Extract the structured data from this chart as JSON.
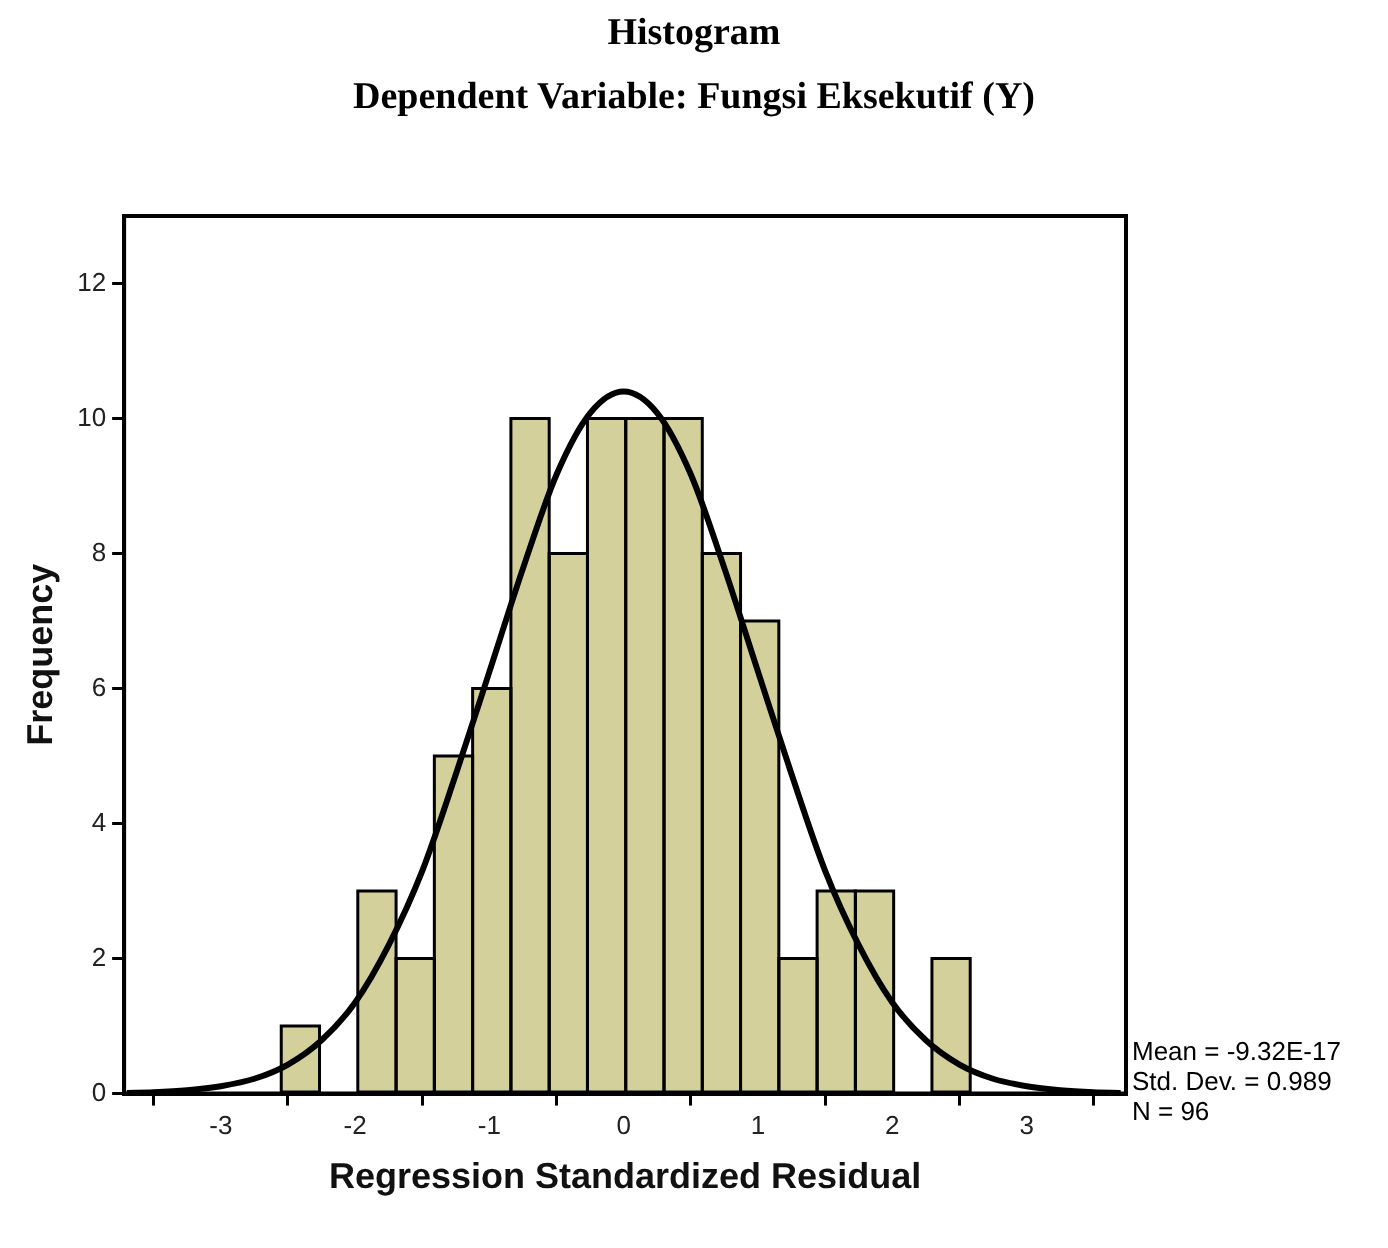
{
  "chart_data": {
    "type": "histogram",
    "title": "Histogram",
    "subtitle": "Dependent Variable: Fungsi Eksekutif (Y)",
    "xlabel": "Regression Standardized Residual",
    "ylabel": "Frequency",
    "bins": [
      -2.55,
      -2.265,
      -1.98,
      -1.695,
      -1.41,
      -1.125,
      -0.84,
      -0.555,
      -0.27,
      0.015,
      0.3,
      0.585,
      0.87,
      1.155,
      1.44,
      1.725,
      2.01,
      2.295,
      2.58
    ],
    "values": [
      1,
      0,
      3,
      2,
      5,
      6,
      10,
      8,
      10,
      10,
      10,
      8,
      7,
      2,
      3,
      3,
      0,
      2
    ],
    "color": "#d4d09c",
    "series": [
      {
        "type": "line",
        "color": "#000000",
        "x": [
          -3.7,
          -3.5,
          -3.25,
          -3,
          -2.75,
          -2.5,
          -2.25,
          -2,
          -1.75,
          -1.5,
          -1.25,
          -1,
          -0.75,
          -0.5,
          -0.25,
          0,
          0.25,
          0.5,
          0.75,
          1,
          1.25,
          1.5,
          1.75,
          2,
          2.25,
          2.5,
          2.75,
          3,
          3.25,
          3.5,
          3.7
        ],
        "values": [
          0.01,
          0.02,
          0.05,
          0.11,
          0.22,
          0.43,
          0.79,
          1.35,
          2.2,
          3.3,
          4.73,
          6.25,
          7.78,
          9.17,
          10.08,
          10.4,
          10.08,
          9.17,
          7.78,
          6.25,
          4.73,
          3.3,
          2.2,
          1.35,
          0.79,
          0.43,
          0.22,
          0.11,
          0.05,
          0.02,
          0.01
        ]
      }
    ],
    "xlim": [
      -3.72,
      3.74
    ],
    "xticks": [
      -3,
      -2,
      -1,
      0,
      1,
      2,
      3
    ],
    "ylim": [
      0,
      13
    ],
    "yticks": [
      0,
      2,
      4,
      6,
      8,
      10,
      12
    ],
    "grid": false,
    "legend": false,
    "annotations": [
      "Mean = -9.32E-17",
      "Std. Dev. = 0.989",
      "N = 96"
    ]
  }
}
